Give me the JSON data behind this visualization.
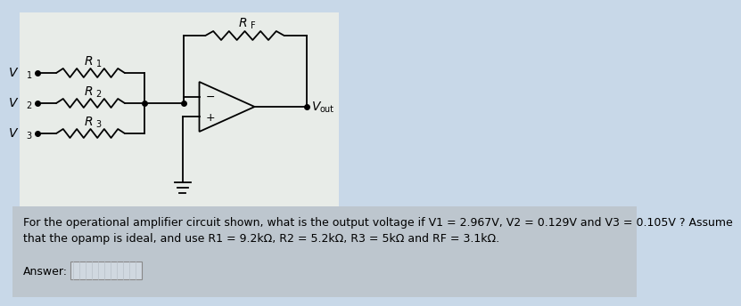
{
  "bg_color_top": "#c8d8e8",
  "bg_color_bottom": "#c0c8d0",
  "circuit_bg": "#e8ece8",
  "body_text_line1": "For the operational amplifier circuit shown, what is the output voltage if V1 = 2.967V, V2 = 0.129V and V3 = 0.105V ? Assume",
  "body_text_line2": "that the opamp is ideal, and use R1 = 9.2kΩ, R2 = 5.2kΩ, R3 = 5kΩ and RF = 3.1kΩ.",
  "answer_label": "Answer:",
  "v1_label": "V",
  "v1_sub": "1",
  "v2_label": "V",
  "v2_sub": "2",
  "v3_label": "V",
  "v3_sub": "3",
  "r1_label": "R",
  "r1_sub": "1",
  "r2_label": "R",
  "r2_sub": "2",
  "r3_label": "R",
  "r3_sub": "3",
  "rf_label": "R",
  "rf_sub": "F",
  "vout_label": "V",
  "vout_sub": "out",
  "minus_label": "−",
  "plus_label": "+",
  "font_size_labels": 10,
  "font_size_body": 9,
  "font_size_sub": 7
}
